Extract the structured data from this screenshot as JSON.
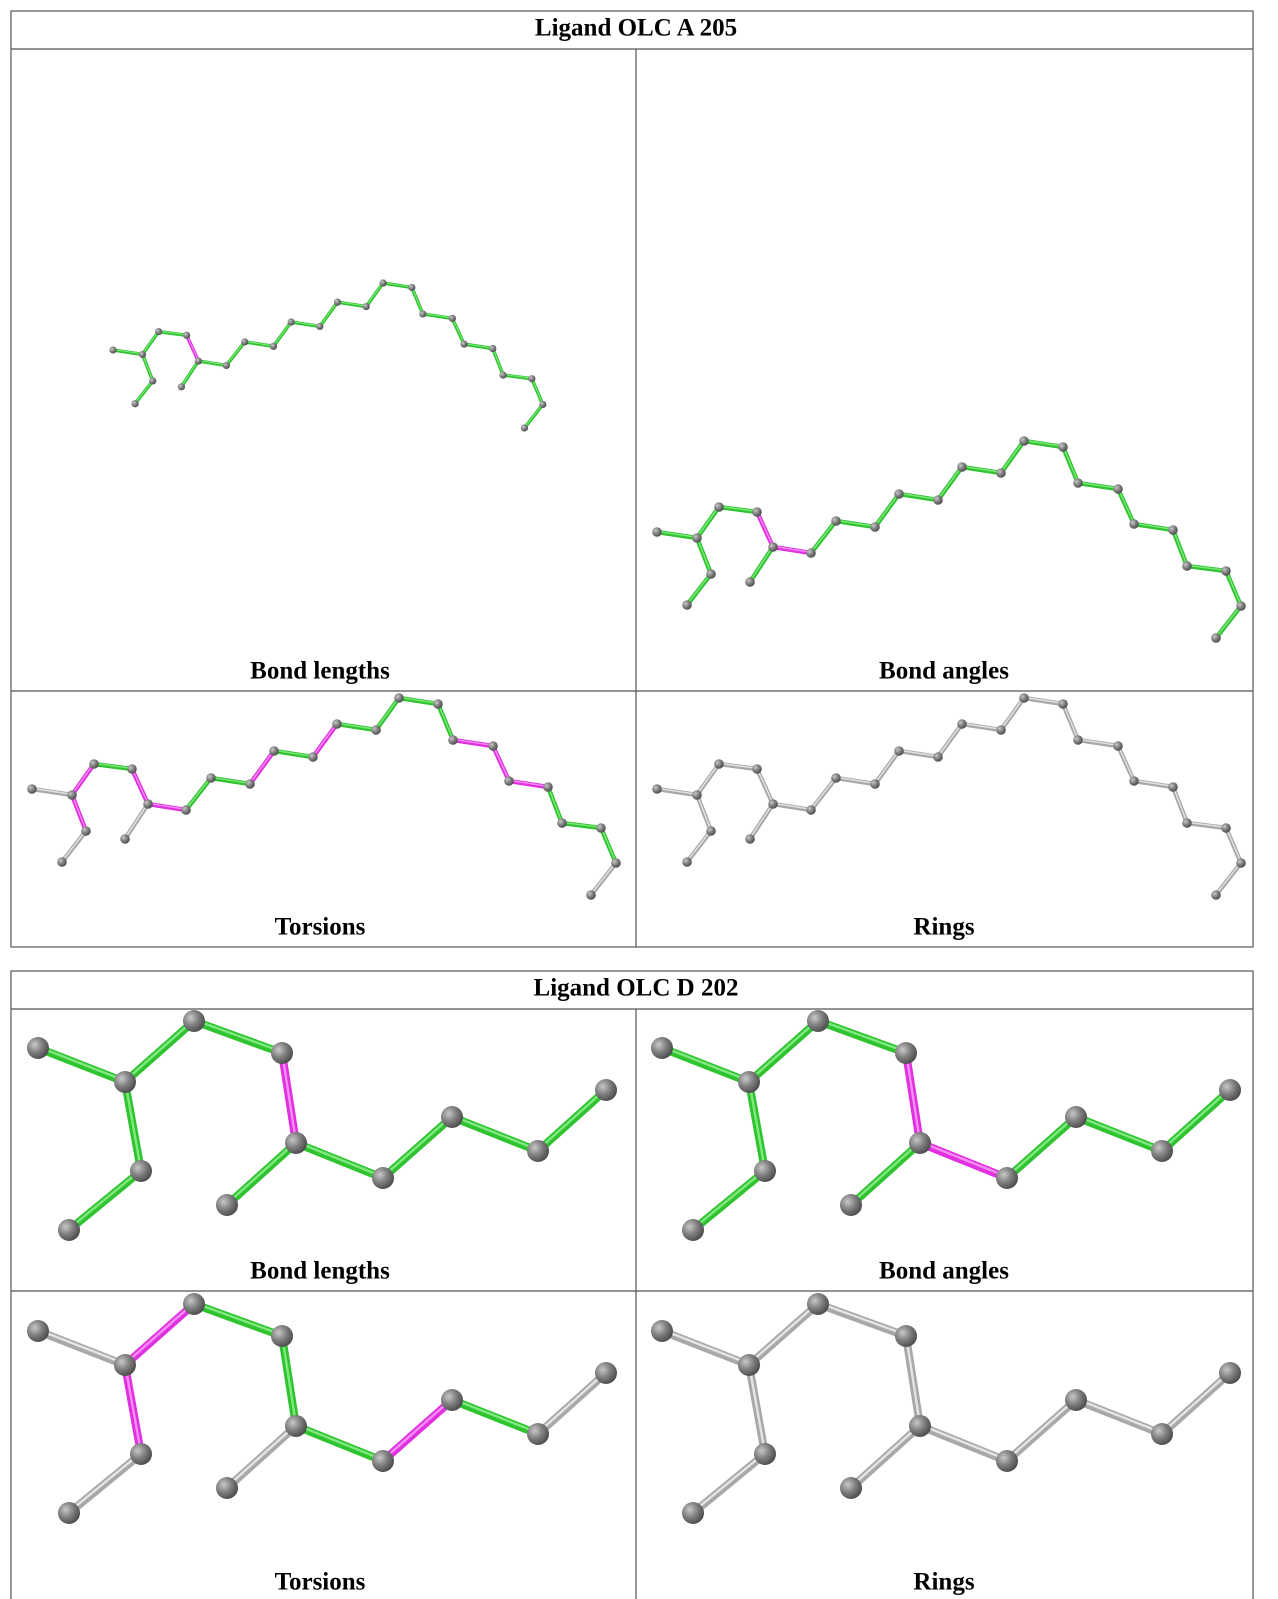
{
  "tables": [
    {
      "title": "Ligand OLC A 205",
      "panels": [
        {
          "label": "Bond lengths"
        },
        {
          "label": "Bond angles"
        },
        {
          "label": "Torsions"
        },
        {
          "label": "Rings"
        }
      ]
    },
    {
      "title": "Ligand OLC D 202",
      "panels": [
        {
          "label": "Bond lengths"
        },
        {
          "label": "Bond angles"
        },
        {
          "label": "Torsions"
        },
        {
          "label": "Rings"
        }
      ]
    }
  ]
}
